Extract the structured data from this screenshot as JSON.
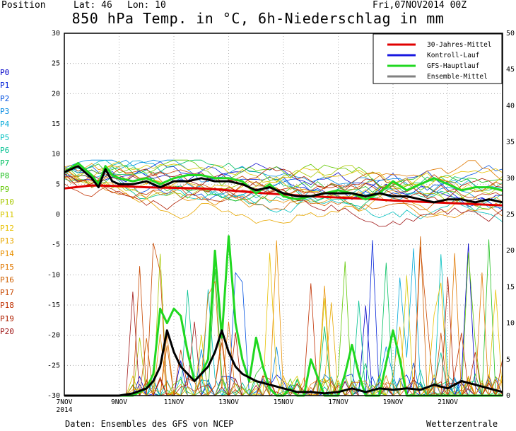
{
  "header": {
    "position_label": "Position",
    "lat_label": "Lat: 46",
    "lon_label": "Lon: 10",
    "run_time": "Fri,07NOV2014 00Z",
    "title": "850 hPa Temp. in °C, 6h-Niederschlag in mm"
  },
  "footer": {
    "source": "Daten: Ensembles des GFS von NCEP",
    "brand": "Wetterzentrale"
  },
  "members": [
    {
      "label": "P0",
      "color": "#0000c8"
    },
    {
      "label": "P1",
      "color": "#0020d8"
    },
    {
      "label": "P2",
      "color": "#0050e0"
    },
    {
      "label": "P3",
      "color": "#0088e0"
    },
    {
      "label": "P4",
      "color": "#00a8d8"
    },
    {
      "label": "P5",
      "color": "#00c0c0"
    },
    {
      "label": "P6",
      "color": "#00c090"
    },
    {
      "label": "P7",
      "color": "#00c060"
    },
    {
      "label": "P8",
      "color": "#20c020"
    },
    {
      "label": "P9",
      "color": "#60c800"
    },
    {
      "label": "P10",
      "color": "#a8c800"
    },
    {
      "label": "P11",
      "color": "#d8c800"
    },
    {
      "label": "P12",
      "color": "#e8c000"
    },
    {
      "label": "P13",
      "color": "#e8a800"
    },
    {
      "label": "P14",
      "color": "#e89000"
    },
    {
      "label": "P15",
      "color": "#e07800"
    },
    {
      "label": "P16",
      "color": "#d06000"
    },
    {
      "label": "P17",
      "color": "#c84800"
    },
    {
      "label": "P18",
      "color": "#c03000"
    },
    {
      "label": "P19",
      "color": "#b02000"
    },
    {
      "label": "P20",
      "color": "#a01818"
    }
  ],
  "chart_data": {
    "type": "line",
    "x_labels": [
      "7NOV",
      "9NOV",
      "11NOV",
      "13NOV",
      "15NOV",
      "17NOV",
      "19NOV",
      "21NOV"
    ],
    "x_sublabel": "2014",
    "x_range_days": [
      0,
      16
    ],
    "left_axis": {
      "ticks": [
        30,
        25,
        20,
        15,
        10,
        5,
        0,
        -5,
        -10,
        -15,
        -20,
        -25,
        -30
      ],
      "ylim": [
        -30,
        30
      ]
    },
    "right_axis": {
      "ticks": [
        50,
        45,
        40,
        35,
        30,
        25,
        20,
        15,
        10,
        5,
        0
      ],
      "ylim": [
        0,
        50
      ]
    },
    "grid": true,
    "legend_position": "top-right",
    "legend": [
      {
        "name": "30-Jahres-Mittel",
        "color": "#e00000"
      },
      {
        "name": "Kontroll-Lauf",
        "color": "#1818e0"
      },
      {
        "name": "GFS-Hauptlauf",
        "color": "#20d820"
      },
      {
        "name": "Ensemble-Mittel",
        "color": "#808080"
      }
    ],
    "temperature_series": [
      {
        "name": "30-Jahres-Mittel",
        "color": "#e00000",
        "width": 3,
        "x": [
          0,
          1,
          2,
          3,
          4,
          5,
          6,
          7,
          8,
          9,
          10,
          11,
          12,
          13,
          14,
          15,
          16
        ],
        "y": [
          4.3,
          4.8,
          4.7,
          4.5,
          4.4,
          4.3,
          4.0,
          3.6,
          3.3,
          3.0,
          2.8,
          2.6,
          2.3,
          2.1,
          1.9,
          1.7,
          1.5
        ]
      },
      {
        "name": "GFS-Hauptlauf",
        "color": "#20d820",
        "width": 3,
        "x": [
          0,
          0.5,
          1,
          1.25,
          1.5,
          1.75,
          2,
          2.5,
          3,
          3.5,
          4,
          4.5,
          5,
          5.5,
          6,
          6.5,
          7,
          7.5,
          8,
          8.5,
          9,
          9.5,
          10,
          10.5,
          11,
          11.5,
          12,
          12.5,
          13,
          13.5,
          14,
          14.5,
          15,
          15.5,
          16
        ],
        "y": [
          7,
          8.5,
          6.5,
          5,
          8,
          6.5,
          6,
          5.5,
          6,
          5,
          6,
          6.5,
          6.5,
          6,
          6,
          5.5,
          3.5,
          5,
          3,
          2.5,
          3,
          3.5,
          4,
          3.5,
          2.5,
          3.5,
          5.5,
          4,
          5,
          6,
          5,
          4,
          4.5,
          4.5,
          4
        ]
      },
      {
        "name": "Ensemble-Mittel",
        "color": "#000000",
        "width": 3,
        "x": [
          0,
          0.5,
          1,
          1.25,
          1.5,
          1.75,
          2,
          2.5,
          3,
          3.5,
          4,
          4.5,
          5,
          5.5,
          6,
          6.5,
          7,
          7.5,
          8,
          8.5,
          9,
          9.5,
          10,
          10.5,
          11,
          11.5,
          12,
          12.5,
          13,
          13.5,
          14,
          14.5,
          15,
          15.5,
          16
        ],
        "y": [
          7,
          8,
          6,
          4.5,
          7.5,
          5.5,
          5,
          5,
          5.5,
          4.5,
          5.5,
          5.5,
          6,
          5.5,
          5.5,
          5,
          4,
          4.5,
          3.5,
          3,
          3,
          3.5,
          3.5,
          3.5,
          3,
          3.5,
          3,
          3,
          2.5,
          2,
          2.5,
          2.5,
          2,
          2.5,
          2
        ]
      }
    ],
    "precip_series": [
      {
        "name": "GFS-Hauptlauf",
        "color": "#20d820",
        "width": 3,
        "x": [
          0,
          2.5,
          3,
          3.25,
          3.5,
          3.75,
          4,
          4.25,
          4.5,
          4.75,
          5,
          5.25,
          5.5,
          5.75,
          6,
          6.25,
          6.5,
          6.75,
          7,
          7.25,
          7.5,
          7.75,
          8,
          8.25,
          8.5,
          8.75,
          9,
          9.5,
          10,
          10.25,
          10.5,
          10.75,
          11,
          11.5,
          12,
          12.25,
          12.5,
          12.75,
          13,
          13.5,
          14,
          14.5,
          15,
          15.5,
          16
        ],
        "y": [
          0,
          0,
          1,
          3,
          12,
          10,
          12,
          11,
          6,
          2,
          3,
          5,
          20,
          8,
          22,
          10,
          5,
          2,
          8,
          4,
          1,
          0,
          0,
          1,
          0,
          0,
          5,
          0,
          0,
          3,
          7,
          3,
          0,
          0,
          9,
          5,
          0,
          0,
          0,
          0,
          0,
          0,
          0,
          0,
          0
        ]
      },
      {
        "name": "Ensemble-Mittel",
        "color": "#000000",
        "width": 3,
        "x": [
          0,
          2,
          2.5,
          3,
          3.25,
          3.5,
          3.75,
          4,
          4.25,
          4.5,
          4.75,
          5,
          5.25,
          5.5,
          5.75,
          6,
          6.25,
          6.5,
          7,
          7.5,
          8,
          8.5,
          9,
          9.5,
          10,
          10.5,
          11,
          11.5,
          12,
          12.5,
          13,
          13.5,
          14,
          14.5,
          15,
          15.5,
          16
        ],
        "y": [
          0,
          0,
          0.3,
          1,
          2,
          4,
          9,
          6,
          4,
          3,
          2,
          3,
          4,
          6,
          9,
          6,
          4,
          3,
          2,
          1.5,
          1,
          0.5,
          0.5,
          0.3,
          0.5,
          1,
          0.5,
          1,
          0.8,
          1,
          0.8,
          1.5,
          1,
          2,
          1.5,
          1,
          0.5
        ]
      }
    ]
  }
}
